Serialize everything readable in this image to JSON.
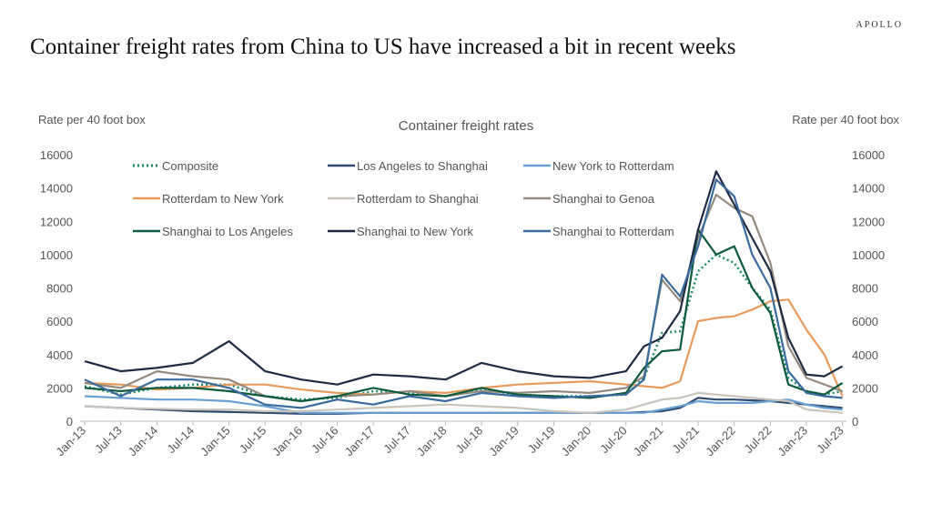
{
  "brand": "APOLLO",
  "title": "Container freight rates from China to US have increased a bit in recent weeks",
  "chart_data": {
    "type": "line",
    "title": "Container freight rates",
    "ylabel_left": "Rate per 40 foot box",
    "ylabel_right": "Rate per 40 foot box",
    "ylim": [
      0,
      16000
    ],
    "y_ticks": [
      "0",
      "2000",
      "4000",
      "6000",
      "8000",
      "10000",
      "12000",
      "14000",
      "16000"
    ],
    "x_ticks": [
      "Jan-13",
      "Jul-13",
      "Jan-14",
      "Jul-14",
      "Jan-15",
      "Jul-15",
      "Jan-16",
      "Jul-16",
      "Jan-17",
      "Jul-17",
      "Jan-18",
      "Jul-18",
      "Jan-19",
      "Jul-19",
      "Jan-20",
      "Jul-20",
      "Jan-21",
      "Jul-21",
      "Jan-22",
      "Jul-22",
      "Jan-23",
      "Jul-23"
    ],
    "legend_placement": "top-left",
    "x": [
      2013,
      2013.5,
      2014,
      2014.5,
      2015,
      2015.5,
      2016,
      2016.5,
      2017,
      2017.5,
      2018,
      2018.5,
      2019,
      2019.5,
      2020,
      2020.5,
      2020.75,
      2021,
      2021.25,
      2021.5,
      2021.75,
      2022,
      2022.25,
      2022.5,
      2022.75,
      2023,
      2023.25,
      2023.5
    ],
    "series": [
      {
        "name": "Composite",
        "color": "#1a8a6a",
        "dash": true,
        "values": [
          2100,
          1600,
          2000,
          2200,
          2200,
          1500,
          1300,
          1400,
          1800,
          1700,
          1500,
          1900,
          1600,
          1500,
          1500,
          1600,
          2600,
          5300,
          5400,
          9000,
          10000,
          9500,
          8000,
          6700,
          2600,
          1800,
          1600,
          1800
        ]
      },
      {
        "name": "Los Angeles to Shanghai",
        "color": "#2e4a6e",
        "values": [
          900,
          800,
          700,
          600,
          550,
          500,
          450,
          450,
          500,
          500,
          500,
          500,
          500,
          500,
          500,
          500,
          550,
          600,
          800,
          1400,
          1300,
          1300,
          1250,
          1200,
          1100,
          1000,
          900,
          800
        ]
      },
      {
        "name": "New York to Rotterdam",
        "color": "#6a9fd4",
        "values": [
          1500,
          1400,
          1300,
          1300,
          1200,
          900,
          500,
          500,
          500,
          500,
          500,
          500,
          500,
          500,
          500,
          500,
          500,
          700,
          900,
          1200,
          1100,
          1100,
          1100,
          1200,
          1300,
          1000,
          800,
          700
        ]
      },
      {
        "name": "Rotterdam to New York",
        "color": "#e89a5c",
        "values": [
          2300,
          2200,
          1900,
          2000,
          2200,
          2200,
          1900,
          1700,
          1600,
          1800,
          1700,
          2000,
          2200,
          2300,
          2400,
          2200,
          2100,
          2000,
          2400,
          6000,
          6200,
          6300,
          6700,
          7200,
          7300,
          5500,
          4000,
          1500
        ]
      },
      {
        "name": "Rotterdam to Shanghai",
        "color": "#c9c4bd",
        "values": [
          900,
          800,
          750,
          700,
          700,
          600,
          600,
          700,
          800,
          900,
          1000,
          900,
          800,
          600,
          500,
          700,
          1000,
          1300,
          1400,
          1700,
          1600,
          1500,
          1400,
          1300,
          1200,
          700,
          600,
          500
        ]
      },
      {
        "name": "Shanghai to Genoa",
        "color": "#948a7d",
        "values": [
          2300,
          2000,
          3000,
          2700,
          2500,
          1500,
          1200,
          1500,
          1600,
          1800,
          1500,
          1800,
          1700,
          1800,
          1700,
          2000,
          2700,
          8500,
          7200,
          11000,
          13600,
          12800,
          12300,
          9500,
          4500,
          2600,
          2200,
          1800
        ]
      },
      {
        "name": "Shanghai to Los Angeles",
        "color": "#0d5a3c",
        "values": [
          2000,
          1800,
          2000,
          2000,
          1800,
          1500,
          1200,
          1500,
          2000,
          1600,
          1500,
          2000,
          1600,
          1500,
          1400,
          1700,
          3200,
          4200,
          4300,
          11500,
          10000,
          10500,
          8000,
          6500,
          2200,
          1800,
          1600,
          2300
        ]
      },
      {
        "name": "Shanghai to New York",
        "color": "#1f2a44",
        "values": [
          3600,
          3000,
          3200,
          3500,
          4800,
          3000,
          2500,
          2200,
          2800,
          2700,
          2500,
          3500,
          3000,
          2700,
          2600,
          3000,
          4500,
          5000,
          6600,
          11500,
          15000,
          13000,
          11000,
          9000,
          5000,
          2800,
          2700,
          3300
        ]
      },
      {
        "name": "Shanghai to Rotterdam",
        "color": "#3a6a9e",
        "values": [
          2500,
          1500,
          2500,
          2500,
          2000,
          1000,
          800,
          1300,
          1000,
          1500,
          1200,
          1700,
          1500,
          1400,
          1500,
          1600,
          2500,
          8800,
          7500,
          10500,
          14500,
          13500,
          10000,
          8000,
          3000,
          1700,
          1500,
          1400
        ]
      }
    ]
  }
}
